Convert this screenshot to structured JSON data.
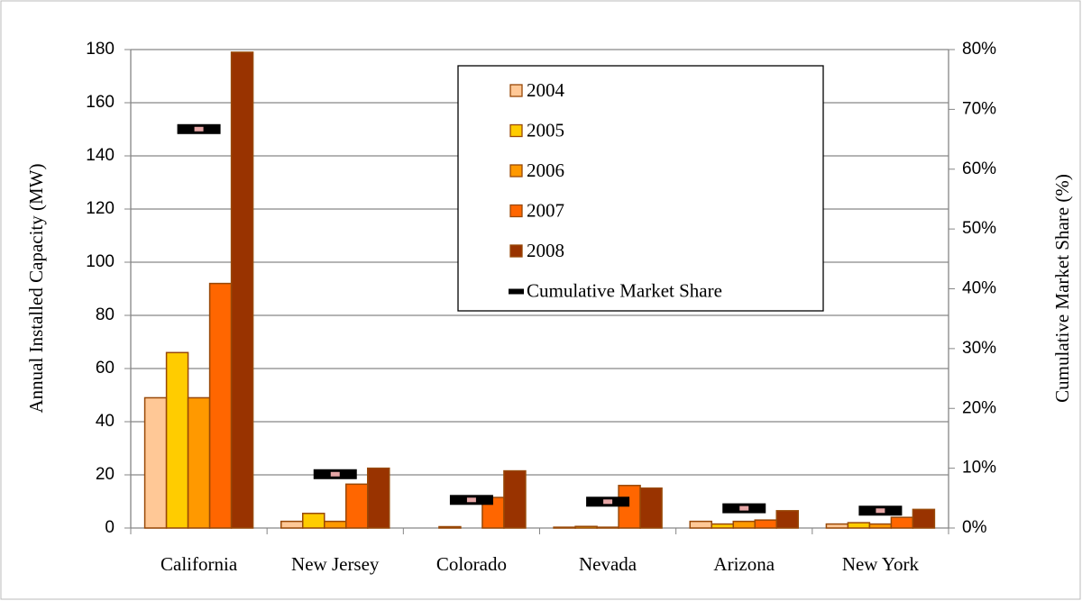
{
  "chart_data": {
    "type": "bar",
    "categories": [
      "California",
      "New Jersey",
      "Colorado",
      "Nevada",
      "Arizona",
      "New York"
    ],
    "series": [
      {
        "name": "2004",
        "color": "#ffc896",
        "values": [
          49,
          2.5,
          0,
          0.3,
          2.5,
          1.5
        ]
      },
      {
        "name": "2005",
        "color": "#ffcc00",
        "values": [
          66,
          5.5,
          0.5,
          0.6,
          1.5,
          2
        ]
      },
      {
        "name": "2006",
        "color": "#ff9900",
        "values": [
          49,
          2.5,
          0,
          0.3,
          2.5,
          1.5
        ]
      },
      {
        "name": "2007",
        "color": "#ff6600",
        "values": [
          92,
          16.5,
          11.5,
          16,
          3,
          4
        ]
      },
      {
        "name": "2008",
        "color": "#993300",
        "values": [
          179,
          22.5,
          21.5,
          15,
          6.5,
          7
        ]
      },
      {
        "name": "Cumulative Market Share",
        "color": "#000000",
        "type": "marker",
        "axis": "y2",
        "values": [
          66.7,
          9,
          4.7,
          4.4,
          3.3,
          2.9
        ]
      }
    ],
    "y_label": "Annual Installed Capacity (MW)",
    "y2_label": "Cumulative Market Share (%)",
    "ylim": [
      0,
      180
    ],
    "yticks": [
      0,
      20,
      40,
      60,
      80,
      100,
      120,
      140,
      160,
      180
    ],
    "y2lim": [
      0,
      80
    ],
    "y2ticks": [
      {
        "value": 0,
        "label": "0%"
      },
      {
        "value": 10,
        "label": "10%"
      },
      {
        "value": 20,
        "label": "20%"
      },
      {
        "value": 30,
        "label": "30%"
      },
      {
        "value": 40,
        "label": "40%"
      },
      {
        "value": 50,
        "label": "50%"
      },
      {
        "value": 60,
        "label": "60%"
      },
      {
        "value": 70,
        "label": "70%"
      },
      {
        "value": 80,
        "label": "80%"
      }
    ],
    "grid": true,
    "legend": "top"
  }
}
